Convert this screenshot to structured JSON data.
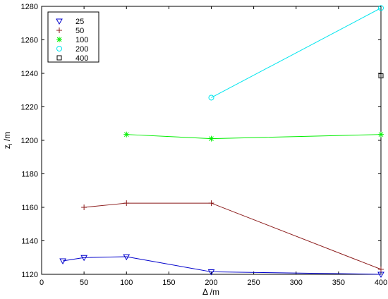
{
  "chart_data": {
    "type": "line",
    "title": "",
    "xlabel": "Δ /m",
    "ylabel": "z",
    "ylabel_subscript": "i",
    "ylabel_unit": " /m",
    "xlim": [
      0,
      400
    ],
    "ylim": [
      1120,
      1280
    ],
    "xticks": [
      0,
      50,
      100,
      150,
      200,
      250,
      300,
      350,
      400
    ],
    "yticks": [
      1120,
      1140,
      1160,
      1180,
      1200,
      1220,
      1240,
      1260,
      1280
    ],
    "grid": false,
    "legend_position": "top-left",
    "series": [
      {
        "name": "25",
        "color": "#0000cc",
        "marker": "triangle-down",
        "x": [
          25,
          50,
          100,
          200,
          400
        ],
        "y": [
          1128,
          1130,
          1130.5,
          1121.5,
          1120
        ]
      },
      {
        "name": "50",
        "color": "#8b1a1a",
        "marker": "plus",
        "x": [
          50,
          100,
          200,
          400
        ],
        "y": [
          1160,
          1162.5,
          1162.5,
          1123
        ]
      },
      {
        "name": "100",
        "color": "#00ee00",
        "marker": "asterisk",
        "x": [
          100,
          200,
          400
        ],
        "y": [
          1203.5,
          1201,
          1203.5
        ]
      },
      {
        "name": "200",
        "color": "#00e5ee",
        "marker": "circle",
        "x": [
          200,
          400
        ],
        "y": [
          1225.5,
          1279
        ]
      },
      {
        "name": "400",
        "color": "#000000",
        "marker": "square",
        "x": [
          400
        ],
        "y": [
          1238.5
        ]
      }
    ]
  }
}
